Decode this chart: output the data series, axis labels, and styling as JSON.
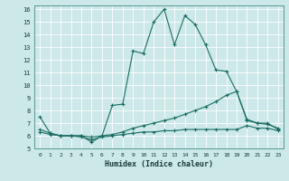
{
  "xlabel": "Humidex (Indice chaleur)",
  "xlim": [
    -0.5,
    23.5
  ],
  "ylim": [
    5,
    16.3
  ],
  "yticks": [
    5,
    6,
    7,
    8,
    9,
    10,
    11,
    12,
    13,
    14,
    15,
    16
  ],
  "xticks": [
    0,
    1,
    2,
    3,
    4,
    5,
    6,
    7,
    8,
    9,
    10,
    11,
    12,
    13,
    14,
    15,
    16,
    17,
    18,
    19,
    20,
    21,
    22,
    23
  ],
  "bg_color": "#cce8e8",
  "line_color": "#1a6e62",
  "grid_color": "#b0d4d0",
  "lines": [
    {
      "x": [
        0,
        1,
        2,
        3,
        4,
        5,
        6,
        7,
        8,
        9,
        10,
        11,
        12,
        13,
        14,
        15,
        16,
        17,
        18,
        19,
        20,
        21,
        22,
        23
      ],
      "y": [
        7.5,
        6.2,
        6.0,
        6.0,
        6.0,
        5.5,
        6.0,
        8.4,
        8.5,
        12.7,
        12.5,
        15.0,
        16.0,
        13.2,
        15.5,
        14.8,
        13.2,
        11.2,
        11.1,
        9.5,
        7.2,
        7.0,
        7.0,
        6.5
      ]
    },
    {
      "x": [
        0,
        1,
        2,
        3,
        4,
        5,
        6,
        7,
        8,
        9,
        10,
        11,
        12,
        13,
        14,
        15,
        16,
        17,
        18,
        19,
        20,
        21,
        22,
        23
      ],
      "y": [
        6.3,
        6.1,
        6.0,
        6.0,
        6.0,
        5.9,
        6.0,
        6.1,
        6.3,
        6.6,
        6.8,
        7.0,
        7.2,
        7.4,
        7.7,
        8.0,
        8.3,
        8.7,
        9.2,
        9.5,
        7.3,
        7.0,
        6.9,
        6.6
      ]
    },
    {
      "x": [
        0,
        1,
        2,
        3,
        4,
        5,
        6,
        7,
        8,
        9,
        10,
        11,
        12,
        13,
        14,
        15,
        16,
        17,
        18,
        19,
        20,
        21,
        22,
        23
      ],
      "y": [
        6.5,
        6.2,
        6.0,
        6.0,
        5.9,
        5.7,
        5.9,
        6.0,
        6.1,
        6.2,
        6.3,
        6.3,
        6.4,
        6.4,
        6.5,
        6.5,
        6.5,
        6.5,
        6.5,
        6.5,
        6.8,
        6.6,
        6.6,
        6.4
      ]
    }
  ]
}
